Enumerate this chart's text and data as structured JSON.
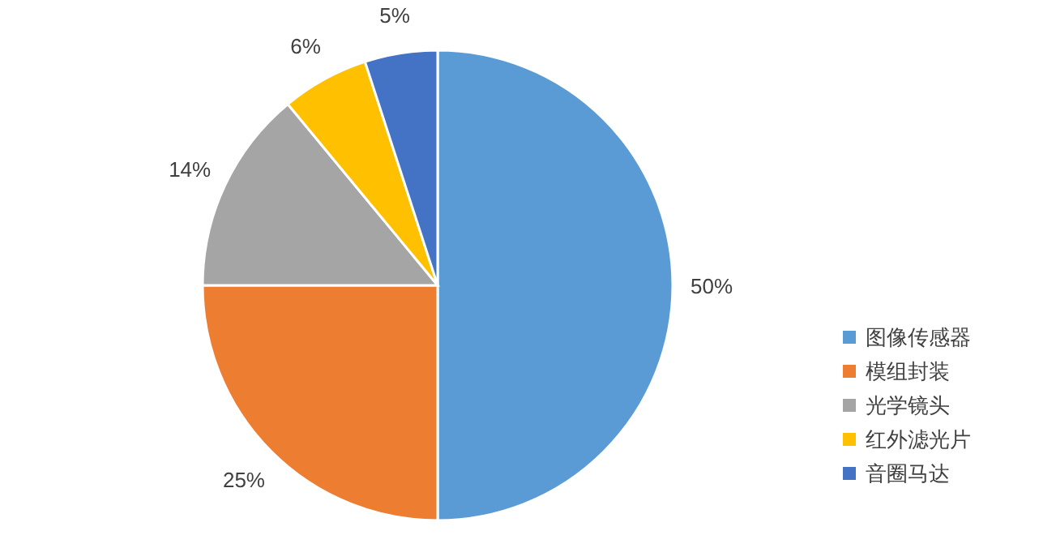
{
  "chart_data": {
    "type": "pie",
    "categories": [
      "图像传感器",
      "模组封装",
      "光学镜头",
      "红外滤光片",
      "音圈马达"
    ],
    "values": [
      50,
      25,
      14,
      6,
      5
    ],
    "colors": [
      "#5b9bd5",
      "#ed7d31",
      "#a5a5a5",
      "#ffc000",
      "#4472c4"
    ],
    "value_labels": [
      "50%",
      "25%",
      "14%",
      "6%",
      "5%"
    ],
    "legend": "right"
  }
}
